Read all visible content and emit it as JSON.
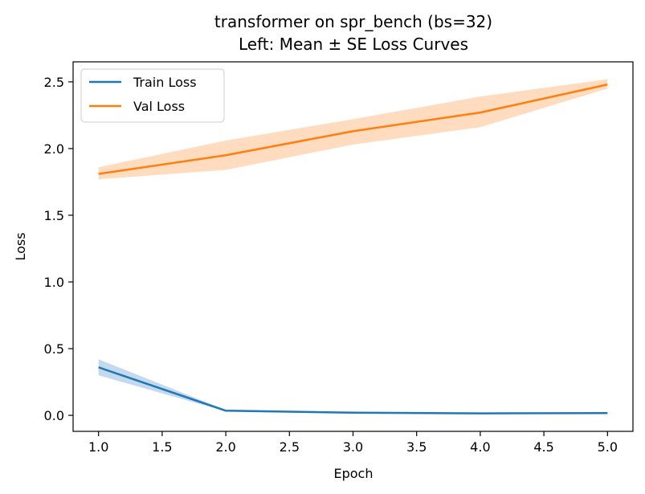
{
  "chart_data": {
    "type": "line",
    "title": "transformer on spr_bench (bs=32)",
    "subtitle": "Left: Mean ± SE Loss Curves",
    "xlabel": "Epoch",
    "ylabel": "Loss",
    "xlim": [
      0.8,
      5.2
    ],
    "ylim": [
      -0.12,
      2.65
    ],
    "xticks": [
      1.0,
      1.5,
      2.0,
      2.5,
      3.0,
      3.5,
      4.0,
      4.5,
      5.0
    ],
    "xtick_labels": [
      "1.0",
      "1.5",
      "2.0",
      "2.5",
      "3.0",
      "3.5",
      "4.0",
      "4.5",
      "5.0"
    ],
    "yticks": [
      0.0,
      0.5,
      1.0,
      1.5,
      2.0,
      2.5
    ],
    "ytick_labels": [
      "0.0",
      "0.5",
      "1.0",
      "1.5",
      "2.0",
      "2.5"
    ],
    "grid": false,
    "legend_position": "top-left",
    "x": [
      1,
      2,
      3,
      4,
      5
    ],
    "series": [
      {
        "name": "Train Loss",
        "color": "#1f77b4",
        "band_color": "#c5d9ee",
        "values": [
          0.36,
          0.035,
          0.02,
          0.015,
          0.017
        ],
        "lower": [
          0.3,
          0.03,
          0.016,
          0.012,
          0.014
        ],
        "upper": [
          0.42,
          0.04,
          0.024,
          0.018,
          0.02
        ]
      },
      {
        "name": "Val Loss",
        "color": "#ff7f0e",
        "band_color": "#ffdcc0",
        "values": [
          1.81,
          1.95,
          2.13,
          2.27,
          2.48
        ],
        "lower": [
          1.77,
          1.84,
          2.03,
          2.16,
          2.45
        ],
        "upper": [
          1.86,
          2.06,
          2.22,
          2.39,
          2.52
        ]
      }
    ]
  }
}
